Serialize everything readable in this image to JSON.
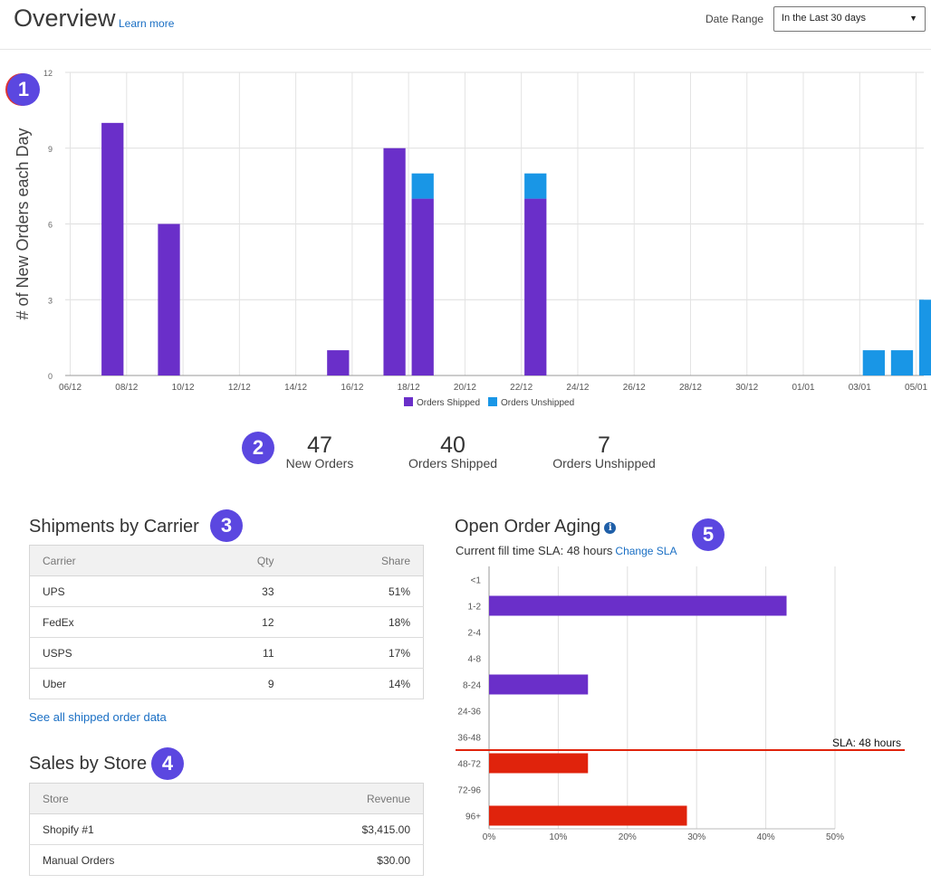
{
  "header": {
    "title": "Overview",
    "learn_more": "Learn more",
    "date_range_label": "Date Range",
    "date_range_value": "In the Last 30 days"
  },
  "badges": [
    "1",
    "2",
    "3",
    "4",
    "5"
  ],
  "colors": {
    "shipped": "#6a2fc9",
    "unshipped": "#1996e6",
    "sla_red": "#e0230c",
    "accent_badge": "#5b47e0",
    "link": "#1a6fc4"
  },
  "chart_data": [
    {
      "type": "bar",
      "stacked": true,
      "ylabel": "# of New Orders each Day",
      "ylim": [
        0,
        12
      ],
      "yticks": [
        0,
        3,
        6,
        9,
        12
      ],
      "categories": [
        "06/12",
        "07/12",
        "08/12",
        "09/12",
        "10/12",
        "11/12",
        "12/12",
        "13/12",
        "14/12",
        "15/12",
        "16/12",
        "17/12",
        "18/12",
        "19/12",
        "20/12",
        "21/12",
        "22/12",
        "23/12",
        "24/12",
        "25/12",
        "26/12",
        "27/12",
        "28/12",
        "29/12",
        "30/12",
        "31/12",
        "01/01",
        "02/01",
        "03/01",
        "04/01",
        "05/01"
      ],
      "xtick_labels": [
        "06/12",
        "08/12",
        "10/12",
        "12/12",
        "14/12",
        "16/12",
        "18/12",
        "20/12",
        "22/12",
        "24/12",
        "26/12",
        "28/12",
        "30/12",
        "01/01",
        "03/01",
        "05/01"
      ],
      "series": [
        {
          "name": "Orders Shipped",
          "values": [
            0,
            10,
            0,
            6,
            0,
            0,
            0,
            0,
            0,
            1,
            0,
            9,
            7,
            0,
            0,
            0,
            7,
            0,
            0,
            0,
            0,
            0,
            0,
            0,
            0,
            0,
            0,
            0,
            0,
            0,
            0
          ]
        },
        {
          "name": "Orders Unshipped",
          "values": [
            0,
            0,
            0,
            0,
            0,
            0,
            0,
            0,
            0,
            0,
            0,
            0,
            1,
            0,
            0,
            0,
            1,
            0,
            0,
            0,
            0,
            0,
            0,
            0,
            0,
            0,
            0,
            0,
            1,
            1,
            3
          ]
        }
      ],
      "legend": "bottom-center"
    },
    {
      "type": "bar",
      "orientation": "horizontal",
      "title": "Open Order Aging",
      "categories": [
        "<1",
        "1-2",
        "2-4",
        "4-8",
        "8-24",
        "24-36",
        "36-48",
        "48-72",
        "72-96",
        "96+"
      ],
      "values": [
        0,
        43,
        0,
        0,
        14.3,
        0,
        0,
        14.3,
        0,
        28.6
      ],
      "unit": "%",
      "xlim": [
        0,
        50
      ],
      "xticks": [
        "0%",
        "10%",
        "20%",
        "30%",
        "40%",
        "50%"
      ],
      "sla_line_label": "SLA: 48 hours",
      "sla_after_category": "36-48"
    }
  ],
  "stats": [
    {
      "value": "47",
      "label": "New Orders"
    },
    {
      "value": "40",
      "label": "Orders Shipped"
    },
    {
      "value": "7",
      "label": "Orders Unshipped"
    }
  ],
  "carriers": {
    "title": "Shipments by Carrier",
    "headers": [
      "Carrier",
      "Qty",
      "Share"
    ],
    "rows": [
      [
        "UPS",
        "33",
        "51%"
      ],
      [
        "FedEx",
        "12",
        "18%"
      ],
      [
        "USPS",
        "11",
        "17%"
      ],
      [
        "Uber",
        "9",
        "14%"
      ]
    ],
    "link": "See all shipped order data"
  },
  "stores": {
    "title": "Sales by Store",
    "headers": [
      "Store",
      "Revenue"
    ],
    "rows": [
      [
        "Shopify #1",
        "$3,415.00"
      ],
      [
        "Manual Orders",
        "$30.00"
      ]
    ]
  },
  "aging": {
    "title": "Open Order Aging",
    "sla_text": "Current fill time SLA: 48 hours",
    "change_sla": "Change SLA"
  }
}
